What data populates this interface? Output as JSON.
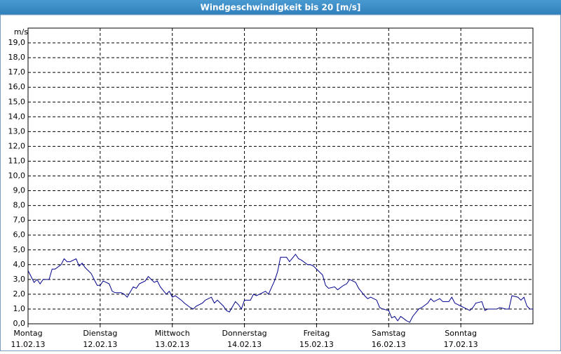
{
  "chart_data": {
    "type": "line",
    "title": "Windgeschwindigkeit bis 20 [m/s]",
    "y_label": "m/s",
    "xlim": [
      0,
      168
    ],
    "xticks": [
      {
        "value": 0,
        "label": "Montag"
      },
      {
        "value": 24,
        "label": "Dienstag"
      },
      {
        "value": 48,
        "label": "Mittwoch"
      },
      {
        "value": 72,
        "label": "Donnerstag"
      },
      {
        "value": 96,
        "label": "Freitag"
      },
      {
        "value": 120,
        "label": "Samstag"
      },
      {
        "value": 144,
        "label": "Sonntag"
      }
    ],
    "xtick_dates": [
      "11.02.13",
      "12.02.13",
      "13.02.13",
      "14.02.13",
      "15.02.13",
      "16.02.13",
      "17.02.13"
    ],
    "ylim": [
      0,
      20
    ],
    "yticks": [
      {
        "value": 0,
        "label": "0,0"
      },
      {
        "value": 1,
        "label": "1,0"
      },
      {
        "value": 2,
        "label": "2,0"
      },
      {
        "value": 3,
        "label": "3,0"
      },
      {
        "value": 4,
        "label": "4,0"
      },
      {
        "value": 5,
        "label": "5,0"
      },
      {
        "value": 6,
        "label": "6,0"
      },
      {
        "value": 7,
        "label": "7,0"
      },
      {
        "value": 8,
        "label": "8,0"
      },
      {
        "value": 9,
        "label": "9,0"
      },
      {
        "value": 10,
        "label": "10,0"
      },
      {
        "value": 11,
        "label": "11,0"
      },
      {
        "value": 12,
        "label": "12,0"
      },
      {
        "value": 13,
        "label": "13,0"
      },
      {
        "value": 14,
        "label": "14,0"
      },
      {
        "value": 15,
        "label": "15,0"
      },
      {
        "value": 16,
        "label": "16,0"
      },
      {
        "value": 17,
        "label": "17,0"
      },
      {
        "value": 18,
        "label": "18,0"
      },
      {
        "value": 19,
        "label": "19,0"
      }
    ],
    "grid": true,
    "series": [
      {
        "color": "#00008b",
        "x": [
          0,
          1,
          2,
          3,
          4,
          5,
          7,
          8,
          9,
          11,
          12,
          13,
          14,
          16,
          17,
          18,
          19,
          21,
          22,
          23,
          24,
          25,
          27,
          28,
          29,
          31,
          32,
          33,
          35,
          36,
          37,
          39,
          40,
          42,
          43,
          44,
          46,
          47,
          48,
          49,
          51,
          52,
          54,
          55,
          56,
          58,
          59,
          61,
          62,
          63,
          65,
          66,
          67,
          69,
          70,
          71,
          72,
          74,
          75,
          76,
          77,
          79,
          80,
          82,
          83,
          84,
          86,
          87,
          89,
          90,
          91,
          93,
          94,
          95,
          96,
          98,
          99,
          100,
          102,
          103,
          105,
          106,
          107,
          109,
          110,
          112,
          113,
          114,
          116,
          117,
          118,
          120,
          121,
          122,
          123,
          124,
          126,
          127,
          128,
          130,
          131,
          133,
          134,
          135,
          137,
          138,
          140,
          141,
          142,
          144,
          145,
          147,
          148,
          149,
          151,
          152,
          153,
          154,
          156,
          157,
          159,
          160,
          161,
          163,
          164,
          165,
          166,
          167,
          168
        ],
        "values": [
          3.6,
          3.2,
          2.8,
          3.0,
          2.7,
          3.0,
          3.0,
          3.7,
          3.7,
          4.0,
          4.4,
          4.2,
          4.2,
          4.4,
          3.9,
          4.1,
          3.8,
          3.4,
          3.0,
          2.6,
          2.6,
          2.9,
          2.7,
          2.2,
          2.1,
          2.1,
          2.0,
          1.8,
          2.5,
          2.4,
          2.7,
          2.9,
          3.2,
          2.8,
          2.9,
          2.5,
          2.0,
          2.2,
          1.8,
          1.9,
          1.6,
          1.4,
          1.1,
          1.0,
          1.2,
          1.4,
          1.6,
          1.8,
          1.4,
          1.6,
          1.2,
          0.9,
          0.8,
          1.5,
          1.3,
          1.0,
          1.6,
          1.6,
          2.0,
          1.9,
          2.0,
          2.2,
          2.0,
          2.9,
          3.5,
          4.5,
          4.5,
          4.2,
          4.7,
          4.4,
          4.3,
          4.0,
          4.0,
          3.9,
          3.7,
          3.3,
          2.6,
          2.4,
          2.5,
          2.3,
          2.6,
          2.7,
          3.0,
          2.8,
          2.4,
          1.9,
          1.7,
          1.8,
          1.6,
          1.1,
          1.0,
          0.9,
          0.4,
          0.5,
          0.2,
          0.5,
          0.2,
          0.1,
          0.5,
          1.0,
          1.1,
          1.4,
          1.7,
          1.5,
          1.7,
          1.5,
          1.5,
          1.8,
          1.4,
          1.2,
          1.1,
          0.9,
          1.1,
          1.4,
          1.5,
          0.9,
          1.0,
          1.0,
          1.0,
          1.1,
          1.0,
          1.0,
          1.9,
          1.8,
          1.6,
          1.8,
          1.2,
          1.0,
          1.0
        ]
      }
    ]
  }
}
